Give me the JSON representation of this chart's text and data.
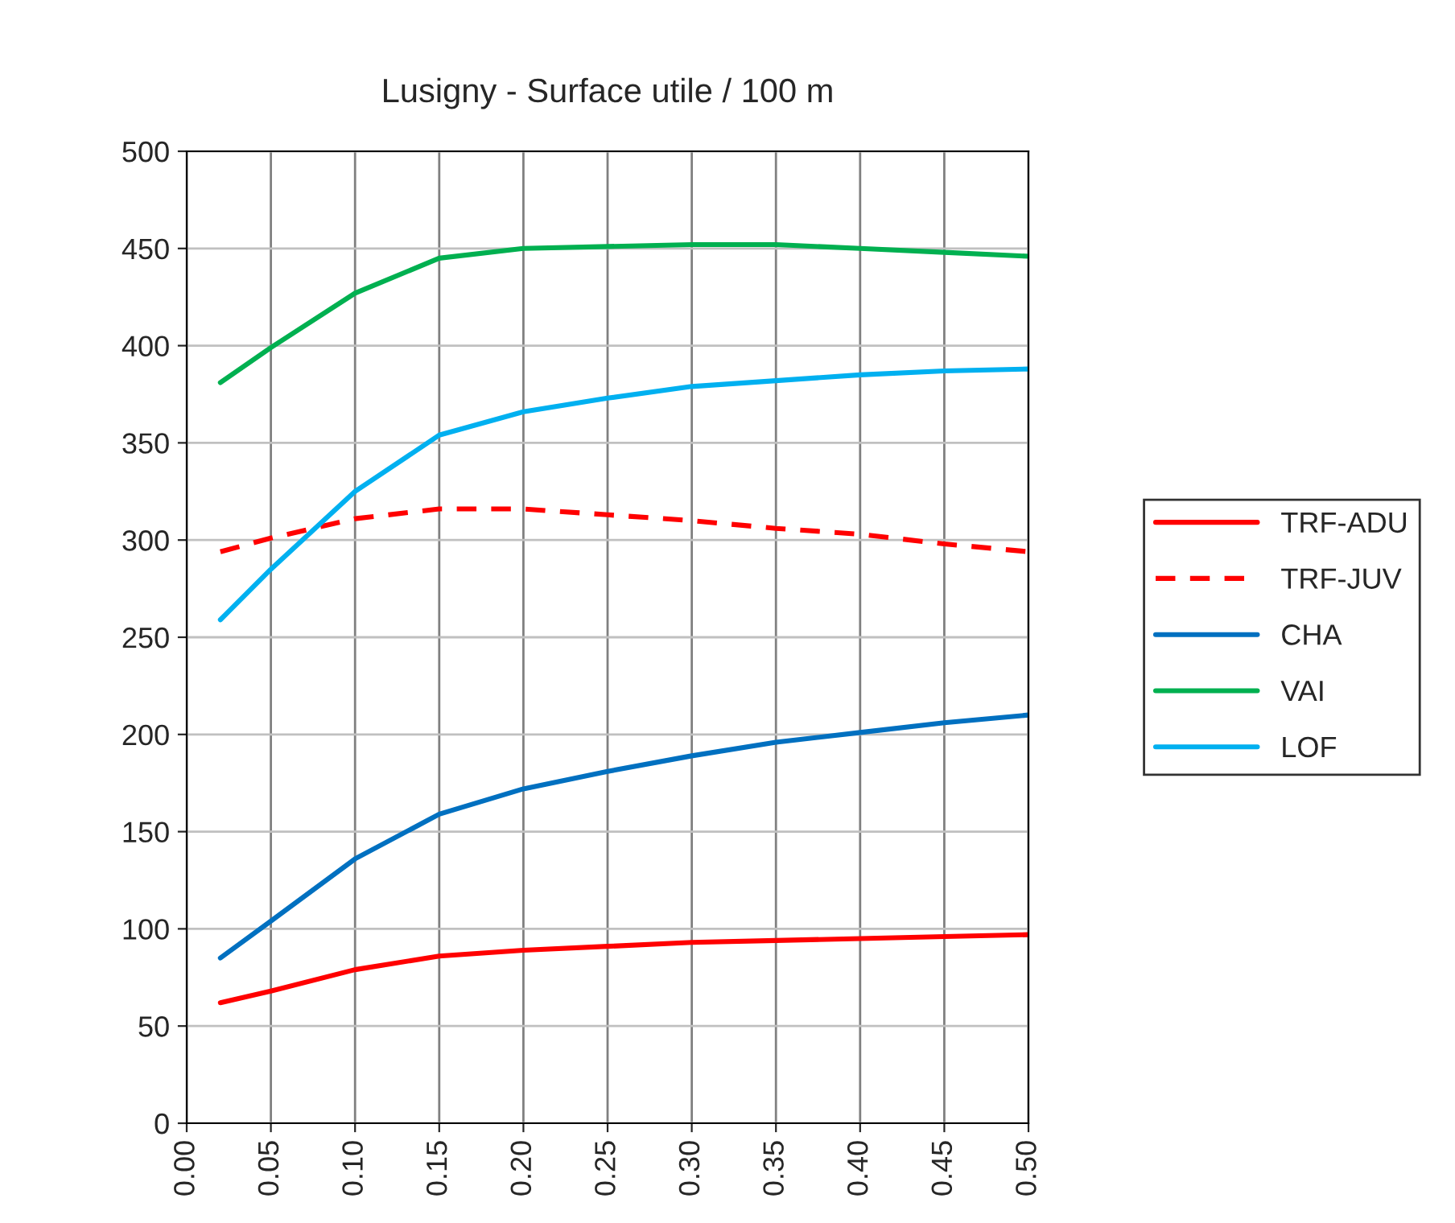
{
  "chart_data": {
    "type": "line",
    "title": "Lusigny - Surface utile / 100 m",
    "x": [
      0.02,
      0.05,
      0.1,
      0.15,
      0.2,
      0.25,
      0.3,
      0.35,
      0.4,
      0.45,
      0.5
    ],
    "series": [
      {
        "name": "TRF-ADU",
        "color": "#ff0000",
        "line_style": "solid",
        "values": [
          62,
          68,
          79,
          86,
          89,
          91,
          93,
          94,
          95,
          96,
          97
        ]
      },
      {
        "name": "TRF-JUV",
        "color": "#ff0000",
        "line_style": "dashed",
        "values": [
          294,
          301,
          311,
          316,
          316,
          313,
          310,
          306,
          303,
          298,
          294
        ]
      },
      {
        "name": "CHA",
        "color": "#0070c0",
        "line_style": "solid",
        "values": [
          85,
          104,
          136,
          159,
          172,
          181,
          189,
          196,
          201,
          206,
          210
        ]
      },
      {
        "name": "VAI",
        "color": "#00b050",
        "line_style": "solid",
        "values": [
          381,
          399,
          427,
          445,
          450,
          451,
          452,
          452,
          450,
          448,
          446
        ]
      },
      {
        "name": "LOF",
        "color": "#00b0f0",
        "line_style": "solid",
        "values": [
          259,
          285,
          325,
          354,
          366,
          373,
          379,
          382,
          385,
          387,
          388
        ]
      }
    ],
    "xlim": [
      0,
      0.5
    ],
    "xticks": [
      {
        "value": 0,
        "label": "0.00"
      },
      {
        "value": 0.05,
        "label": "0.05"
      },
      {
        "value": 0.1,
        "label": "0.10"
      },
      {
        "value": 0.15,
        "label": "0.15"
      },
      {
        "value": 0.2,
        "label": "0.20"
      },
      {
        "value": 0.25,
        "label": "0.25"
      },
      {
        "value": 0.3,
        "label": "0.30"
      },
      {
        "value": 0.35,
        "label": "0.35"
      },
      {
        "value": 0.4,
        "label": "0.40"
      },
      {
        "value": 0.45,
        "label": "0.45"
      },
      {
        "value": 0.5,
        "label": "0.50"
      }
    ],
    "ylim": [
      0,
      500
    ],
    "yticks": [
      0,
      50,
      100,
      150,
      200,
      250,
      300,
      350,
      400,
      450,
      500
    ],
    "grid": true,
    "legend": "right",
    "marker": "none"
  }
}
